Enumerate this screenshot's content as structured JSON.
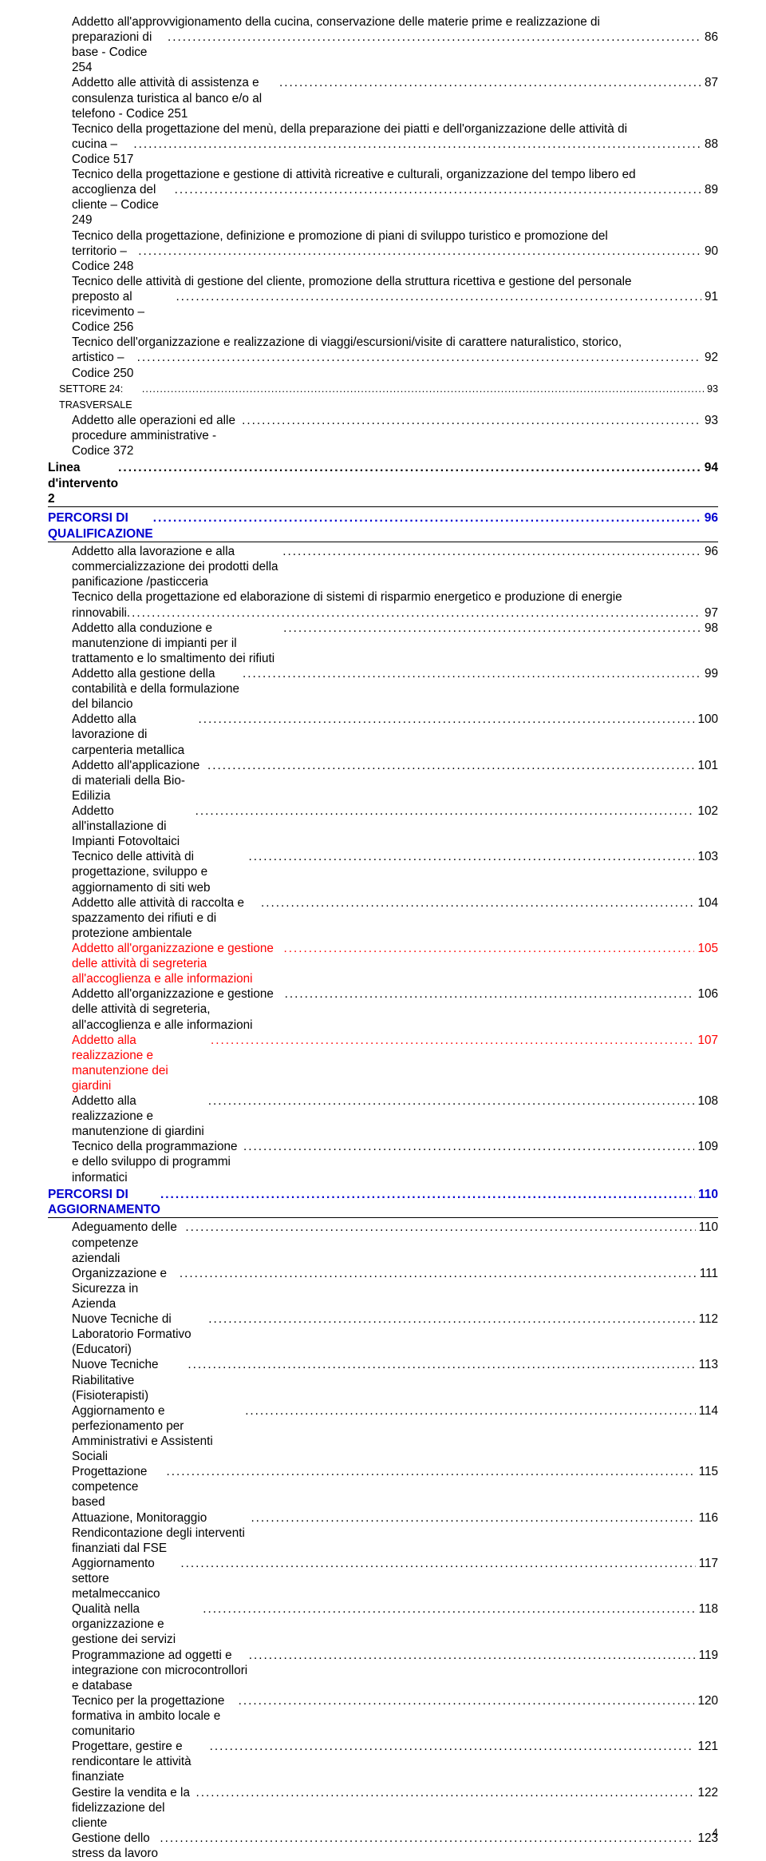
{
  "dots": "............................................................................................................................................................................................................",
  "sectorDots": "........................................................................................................................................................................................................................................................................",
  "entries": [
    {
      "type": "wrap2",
      "indent": 1,
      "l1": "Addetto all'approvvigionamento della cucina, conservazione delle materie prime e realizzazione di",
      "l2": "preparazioni di base - Codice 254",
      "pg": "86"
    },
    {
      "type": "single",
      "indent": 1,
      "text": "Addetto alle attività di assistenza e consulenza turistica al banco e/o al telefono - Codice 251",
      "pg": "87"
    },
    {
      "type": "wrap2",
      "indent": 1,
      "l1": "Tecnico della progettazione del menù, della preparazione dei piatti e dell'organizzazione delle attività di",
      "l2": "cucina – Codice 517",
      "pg": "88"
    },
    {
      "type": "wrap2",
      "indent": 1,
      "l1": "Tecnico della progettazione e gestione di attività ricreative e culturali, organizzazione del tempo libero ed",
      "l2": "accoglienza del cliente – Codice 249",
      "pg": "89"
    },
    {
      "type": "wrap2",
      "indent": 1,
      "l1": "Tecnico della progettazione, definizione e promozione di piani di sviluppo turistico e promozione del",
      "l2": "territorio – Codice 248",
      "pg": "90"
    },
    {
      "type": "wrap2",
      "indent": 1,
      "l1": "Tecnico delle attività di gestione del cliente, promozione della struttura ricettiva e gestione del personale",
      "l2": "preposto al ricevimento – Codice 256",
      "pg": "91"
    },
    {
      "type": "wrap2",
      "indent": 1,
      "l1": "Tecnico dell'organizzazione e realizzazione di viaggi/escursioni/visite di carattere naturalistico, storico,",
      "l2": "artistico – Codice 250",
      "pg": "92"
    },
    {
      "type": "sector",
      "text": "SETTORE 24: TRASVERSALE",
      "pg": "93"
    },
    {
      "type": "single",
      "indent": 1,
      "text": "Addetto alle operazioni ed alle procedure amministrative - Codice 372",
      "pg": "93"
    },
    {
      "type": "spacer"
    },
    {
      "type": "heading",
      "color": "black",
      "text": "Linea d'intervento 2",
      "pg": "94",
      "rule": true
    },
    {
      "type": "spacer"
    },
    {
      "type": "heading",
      "color": "blue",
      "text": "PERCORSI DI QUALIFICAZIONE",
      "pg": "96",
      "rule": true
    },
    {
      "type": "single",
      "indent": 1,
      "text": "Addetto alla lavorazione e alla commercializzazione dei prodotti della panificazione /pasticceria",
      "pg": "96"
    },
    {
      "type": "wrap2",
      "indent": 1,
      "l1": "Tecnico della progettazione ed elaborazione di sistemi di risparmio energetico e produzione di energie",
      "l2": "rinnovabili",
      "pg": "97"
    },
    {
      "type": "single",
      "indent": 1,
      "text": "Addetto alla conduzione e manutenzione di impianti per il trattamento e lo smaltimento dei rifiuti",
      "pg": "98"
    },
    {
      "type": "single",
      "indent": 1,
      "text": "Addetto alla gestione della contabilità e della formulazione del bilancio",
      "pg": "99"
    },
    {
      "type": "single",
      "indent": 1,
      "text": "Addetto alla lavorazione di carpenteria metallica",
      "pg": "100"
    },
    {
      "type": "single",
      "indent": 1,
      "text": "Addetto all'applicazione di materiali della Bio-Edilizia",
      "pg": "101"
    },
    {
      "type": "single",
      "indent": 1,
      "text": "Addetto all'installazione di Impianti Fotovoltaici",
      "pg": "102"
    },
    {
      "type": "single",
      "indent": 1,
      "text": "Tecnico delle attività di progettazione, sviluppo e aggiornamento di siti web",
      "pg": "103"
    },
    {
      "type": "single",
      "indent": 1,
      "text": "Addetto alle attività di raccolta e spazzamento dei rifiuti e di protezione ambientale",
      "pg": "104"
    },
    {
      "type": "single",
      "indent": 1,
      "instr": true,
      "text": "Addetto all'organizzazione e gestione delle attività di segreteria all'accoglienza e alle informazioni",
      "pg": "105"
    },
    {
      "type": "single",
      "indent": 1,
      "text": "Addetto all'organizzazione e gestione delle attività di segreteria, all'accoglienza e alle informazioni",
      "pg": "106"
    },
    {
      "type": "single",
      "indent": 1,
      "instr": true,
      "text": "Addetto alla realizzazione e manutenzione dei giardini",
      "pg": "107"
    },
    {
      "type": "single",
      "indent": 1,
      "text": "Addetto alla realizzazione e manutenzione di giardini",
      "pg": "108"
    },
    {
      "type": "single",
      "indent": 1,
      "text": "Tecnico della programmazione e dello sviluppo di programmi informatici",
      "pg": "109"
    },
    {
      "type": "spacer"
    },
    {
      "type": "heading",
      "color": "blue",
      "text": "PERCORSI DI AGGIORNAMENTO",
      "pg": "110",
      "rule": true
    },
    {
      "type": "single",
      "indent": 1,
      "text": "Adeguamento delle competenze aziendali",
      "pg": "110"
    },
    {
      "type": "single",
      "indent": 1,
      "text": "Organizzazione e Sicurezza in Azienda",
      "pg": "111"
    },
    {
      "type": "single",
      "indent": 1,
      "text": "Nuove Tecniche di Laboratorio Formativo (Educatori)",
      "pg": "112"
    },
    {
      "type": "single",
      "indent": 1,
      "text": "Nuove Tecniche Riabilitative (Fisioterapisti)",
      "pg": "113"
    },
    {
      "type": "single",
      "indent": 1,
      "text": "Aggiornamento e perfezionamento per Amministrativi e Assistenti Sociali",
      "pg": "114"
    },
    {
      "type": "single",
      "indent": 1,
      "text": "Progettazione competence based",
      "pg": "115"
    },
    {
      "type": "single",
      "indent": 1,
      "text": "Attuazione, Monitoraggio Rendicontazione degli interventi finanziati dal FSE",
      "pg": "116"
    },
    {
      "type": "single",
      "indent": 1,
      "text": "Aggiornamento settore metalmeccanico",
      "pg": "117"
    },
    {
      "type": "single",
      "indent": 1,
      "text": "Qualità nella organizzazione e gestione dei servizi",
      "pg": "118"
    },
    {
      "type": "single",
      "indent": 1,
      "text": "Programmazione ad oggetti e integrazione con microcontrollori e database",
      "pg": "119"
    },
    {
      "type": "single",
      "indent": 1,
      "text": "Tecnico per la progettazione formativa in ambito locale e comunitario",
      "pg": "120"
    },
    {
      "type": "single",
      "indent": 1,
      "text": "Progettare, gestire e rendicontare le attività finanziate",
      "pg": "121"
    },
    {
      "type": "single",
      "indent": 1,
      "text": "Gestire la vendita e la fidelizzazione del cliente",
      "pg": "122"
    },
    {
      "type": "single",
      "indent": 1,
      "text": "Gestione dello stress da lavoro",
      "pg": "123"
    }
  ],
  "pageNumber": "4"
}
